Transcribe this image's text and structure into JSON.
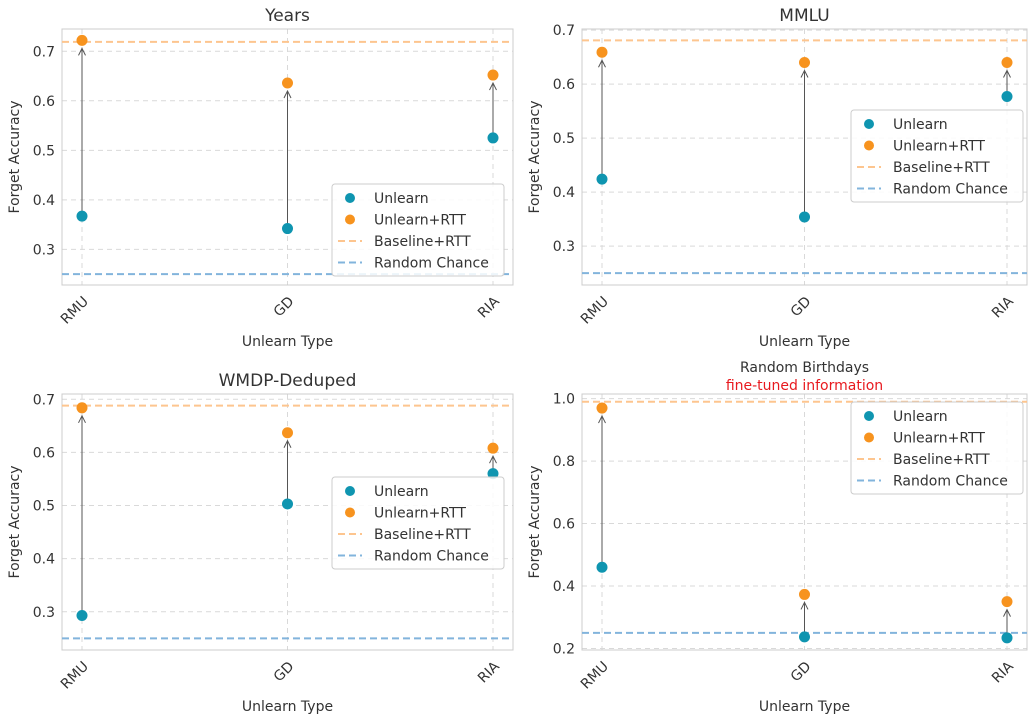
{
  "colors": {
    "unlearn": "#0f95b0",
    "unlearn_rtt": "#f7931e",
    "baseline_rtt": "#fdc58f",
    "random_chance": "#82b4dc"
  },
  "chart_data": [
    {
      "type": "scatter",
      "title": "Years",
      "subtitle": "",
      "xlabel": "Unlearn Type",
      "ylabel": "Forget Accuracy",
      "categories": [
        "RMU",
        "GD",
        "RIA"
      ],
      "ylim": [
        0.228,
        0.745
      ],
      "yticks": [
        0.3,
        0.4,
        0.5,
        0.6,
        0.7
      ],
      "ytick_labels": [
        "0.3",
        "0.4",
        "0.5",
        "0.6",
        "0.7"
      ],
      "series": [
        {
          "name": "Unlearn",
          "values": [
            0.367,
            0.342,
            0.525
          ]
        },
        {
          "name": "Unlearn+RTT",
          "values": [
            0.722,
            0.636,
            0.652
          ]
        }
      ],
      "baselines": [
        {
          "name": "Baseline+RTT",
          "value": 0.719
        },
        {
          "name": "Random Chance",
          "value": 0.25
        }
      ],
      "legend_position": "lower right",
      "grid": true
    },
    {
      "type": "scatter",
      "title": "MMLU",
      "subtitle": "",
      "xlabel": "Unlearn Type",
      "ylabel": "Forget Accuracy",
      "categories": [
        "RMU",
        "GD",
        "RIA"
      ],
      "ylim": [
        0.228,
        0.702
      ],
      "yticks": [
        0.3,
        0.4,
        0.5,
        0.6,
        0.7
      ],
      "ytick_labels": [
        "0.3",
        "0.4",
        "0.5",
        "0.6",
        "0.7"
      ],
      "series": [
        {
          "name": "Unlearn",
          "values": [
            0.424,
            0.354,
            0.577
          ]
        },
        {
          "name": "Unlearn+RTT",
          "values": [
            0.659,
            0.64,
            0.64
          ]
        }
      ],
      "baselines": [
        {
          "name": "Baseline+RTT",
          "value": 0.681
        },
        {
          "name": "Random Chance",
          "value": 0.25
        }
      ],
      "legend_position": "center right",
      "grid": true
    },
    {
      "type": "scatter",
      "title": "WMDP-Deduped",
      "subtitle": "",
      "xlabel": "Unlearn Type",
      "ylabel": "Forget Accuracy",
      "categories": [
        "RMU",
        "GD",
        "RIA"
      ],
      "ylim": [
        0.228,
        0.71
      ],
      "yticks": [
        0.3,
        0.4,
        0.5,
        0.6,
        0.7
      ],
      "ytick_labels": [
        "0.3",
        "0.4",
        "0.5",
        "0.6",
        "0.7"
      ],
      "series": [
        {
          "name": "Unlearn",
          "values": [
            0.293,
            0.503,
            0.56
          ]
        },
        {
          "name": "Unlearn+RTT",
          "values": [
            0.684,
            0.637,
            0.608
          ]
        }
      ],
      "baselines": [
        {
          "name": "Baseline+RTT",
          "value": 0.688
        },
        {
          "name": "Random Chance",
          "value": 0.25
        }
      ],
      "legend_position": "center right",
      "grid": true
    },
    {
      "type": "scatter",
      "title": "Random Birthdays",
      "subtitle": "fine-tuned information",
      "subtitle_color": "#e8191e",
      "xlabel": "Unlearn Type",
      "ylabel": "Forget Accuracy",
      "categories": [
        "RMU",
        "GD",
        "RIA"
      ],
      "ylim": [
        0.195,
        1.015
      ],
      "yticks": [
        0.2,
        0.4,
        0.6,
        0.8,
        1.0
      ],
      "ytick_labels": [
        "0.2",
        "0.4",
        "0.6",
        "0.8",
        "1.0"
      ],
      "series": [
        {
          "name": "Unlearn",
          "values": [
            0.46,
            0.237,
            0.234
          ]
        },
        {
          "name": "Unlearn+RTT",
          "values": [
            0.97,
            0.373,
            0.35
          ]
        }
      ],
      "baselines": [
        {
          "name": "Baseline+RTT",
          "value": 0.99
        },
        {
          "name": "Random Chance",
          "value": 0.25
        }
      ],
      "legend_position": "upper right",
      "grid": true
    }
  ]
}
